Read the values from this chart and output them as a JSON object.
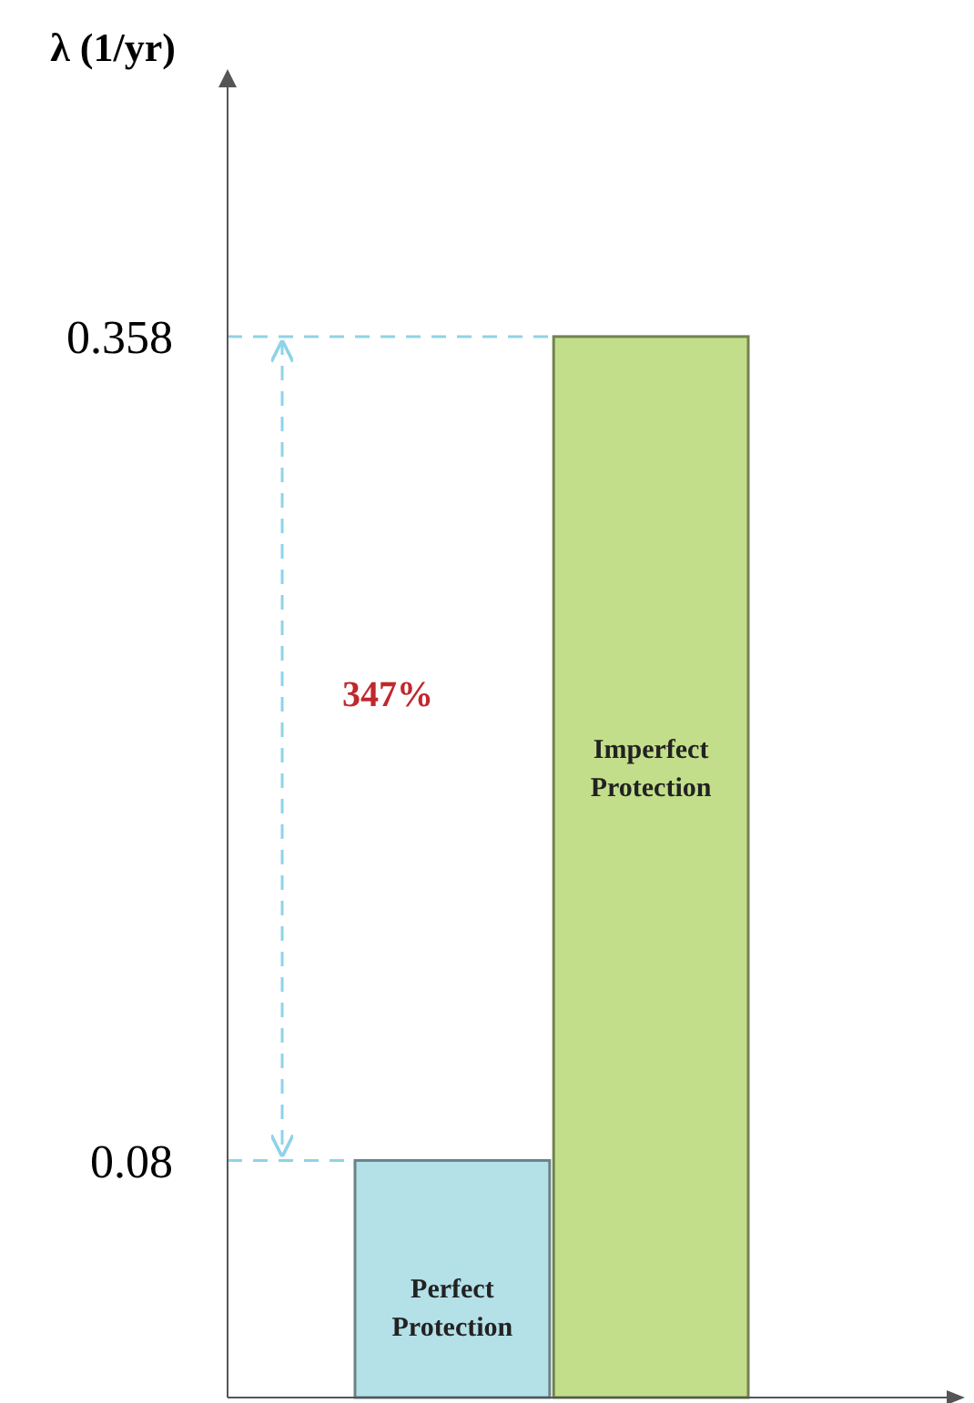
{
  "chart_data": {
    "type": "bar",
    "ylabel": "λ (1/yr)",
    "categories": [
      "Perfect Protection",
      "Imperfect Protection"
    ],
    "values": [
      0.08,
      0.358
    ],
    "colors": [
      "#b4e0e8",
      "#c3de8a"
    ],
    "ylim": [
      0,
      0.447
    ],
    "yticks": [
      0.08,
      0.358
    ],
    "ref_lines": [
      {
        "axis": "y",
        "value": 0.358,
        "color": "#8fd3e8",
        "line_style": "dashed"
      },
      {
        "axis": "y",
        "value": 0.08,
        "color": "#8fd3e8",
        "line_style": "dashed"
      }
    ],
    "annotations": [
      "347%"
    ]
  }
}
